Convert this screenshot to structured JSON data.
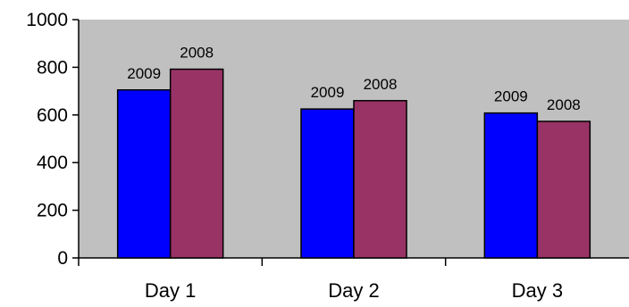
{
  "chart_data": {
    "type": "bar",
    "categories": [
      "Day 1",
      "Day 2",
      "Day 3"
    ],
    "series": [
      {
        "name": "2009",
        "color": "#0000ff",
        "values": [
          705,
          625,
          608
        ]
      },
      {
        "name": "2008",
        "color": "#993366",
        "values": [
          792,
          660,
          573
        ]
      }
    ],
    "ylim": [
      0,
      1000
    ],
    "yticks": [
      "0",
      "200",
      "400",
      "600",
      "800",
      "1000"
    ],
    "plot_background": "#c0c0c0",
    "grid": false,
    "legend": "none"
  }
}
